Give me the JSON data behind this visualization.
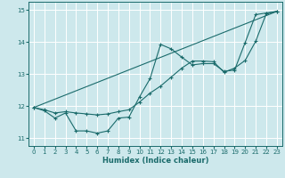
{
  "xlabel": "Humidex (Indice chaleur)",
  "xlim": [
    -0.5,
    23.5
  ],
  "ylim": [
    10.75,
    15.25
  ],
  "yticks": [
    11,
    12,
    13,
    14,
    15
  ],
  "xticks": [
    0,
    1,
    2,
    3,
    4,
    5,
    6,
    7,
    8,
    9,
    10,
    11,
    12,
    13,
    14,
    15,
    16,
    17,
    18,
    19,
    20,
    21,
    22,
    23
  ],
  "bg_color": "#cde8ec",
  "grid_color": "#b0d4d8",
  "line_color": "#1a6b6b",
  "series1_x": [
    0,
    1,
    2,
    3,
    4,
    5,
    6,
    7,
    8,
    9,
    10,
    11,
    12,
    13,
    14,
    15,
    16,
    17,
    18,
    19,
    20,
    21,
    22,
    23
  ],
  "series1_y": [
    11.95,
    11.85,
    11.62,
    11.78,
    11.22,
    11.22,
    11.15,
    11.22,
    11.62,
    11.65,
    12.28,
    12.85,
    13.92,
    13.78,
    13.52,
    13.28,
    13.32,
    13.32,
    13.08,
    13.12,
    13.98,
    14.85,
    14.9,
    14.95
  ],
  "series2_x": [
    0,
    1,
    2,
    3,
    4,
    5,
    6,
    7,
    8,
    9,
    10,
    11,
    12,
    13,
    14,
    15,
    16,
    17,
    18,
    19,
    20,
    21,
    22,
    23
  ],
  "series2_y": [
    11.95,
    11.88,
    11.78,
    11.82,
    11.78,
    11.75,
    11.72,
    11.75,
    11.82,
    11.88,
    12.12,
    12.4,
    12.62,
    12.9,
    13.18,
    13.4,
    13.4,
    13.38,
    13.05,
    13.18,
    13.42,
    14.02,
    14.88,
    14.95
  ],
  "series3_x": [
    0,
    23
  ],
  "series3_y": [
    11.95,
    14.95
  ]
}
